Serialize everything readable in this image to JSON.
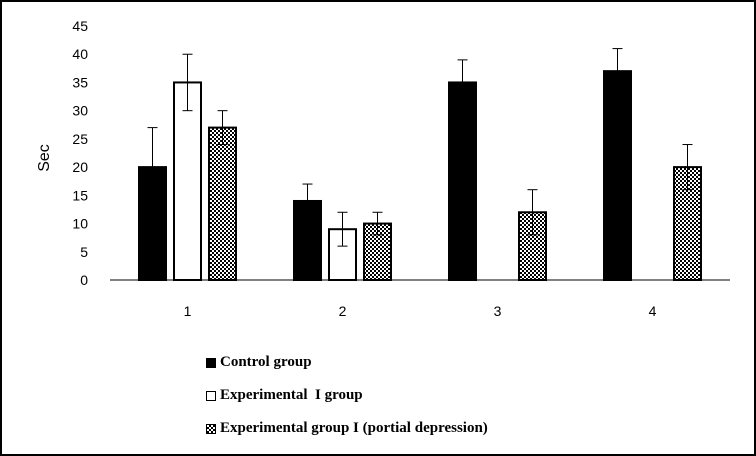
{
  "chart_data": {
    "type": "bar",
    "categories": [
      "1",
      "2",
      "3",
      "4"
    ],
    "series": [
      {
        "name": "Control group",
        "values": [
          20,
          14,
          35,
          37
        ],
        "errors": [
          7,
          3,
          4,
          4
        ],
        "fill": "#000000"
      },
      {
        "name": "Experimental  I group",
        "values": [
          35,
          9,
          null,
          null
        ],
        "errors": [
          5,
          3,
          null,
          null
        ],
        "fill": "#ffffff"
      },
      {
        "name": "Experimental group I (portial depression)",
        "values": [
          27,
          10,
          12,
          20
        ],
        "errors": [
          3,
          2,
          4,
          4
        ],
        "fill": "checkered"
      }
    ],
    "yticks": [
      "0",
      "5",
      "10",
      "15",
      "20",
      "25",
      "30",
      "35",
      "40",
      "45"
    ],
    "ylabel": "Sec",
    "xlabel": "",
    "ylim": [
      0,
      45
    ],
    "grid": false,
    "legend_position": "bottom"
  }
}
